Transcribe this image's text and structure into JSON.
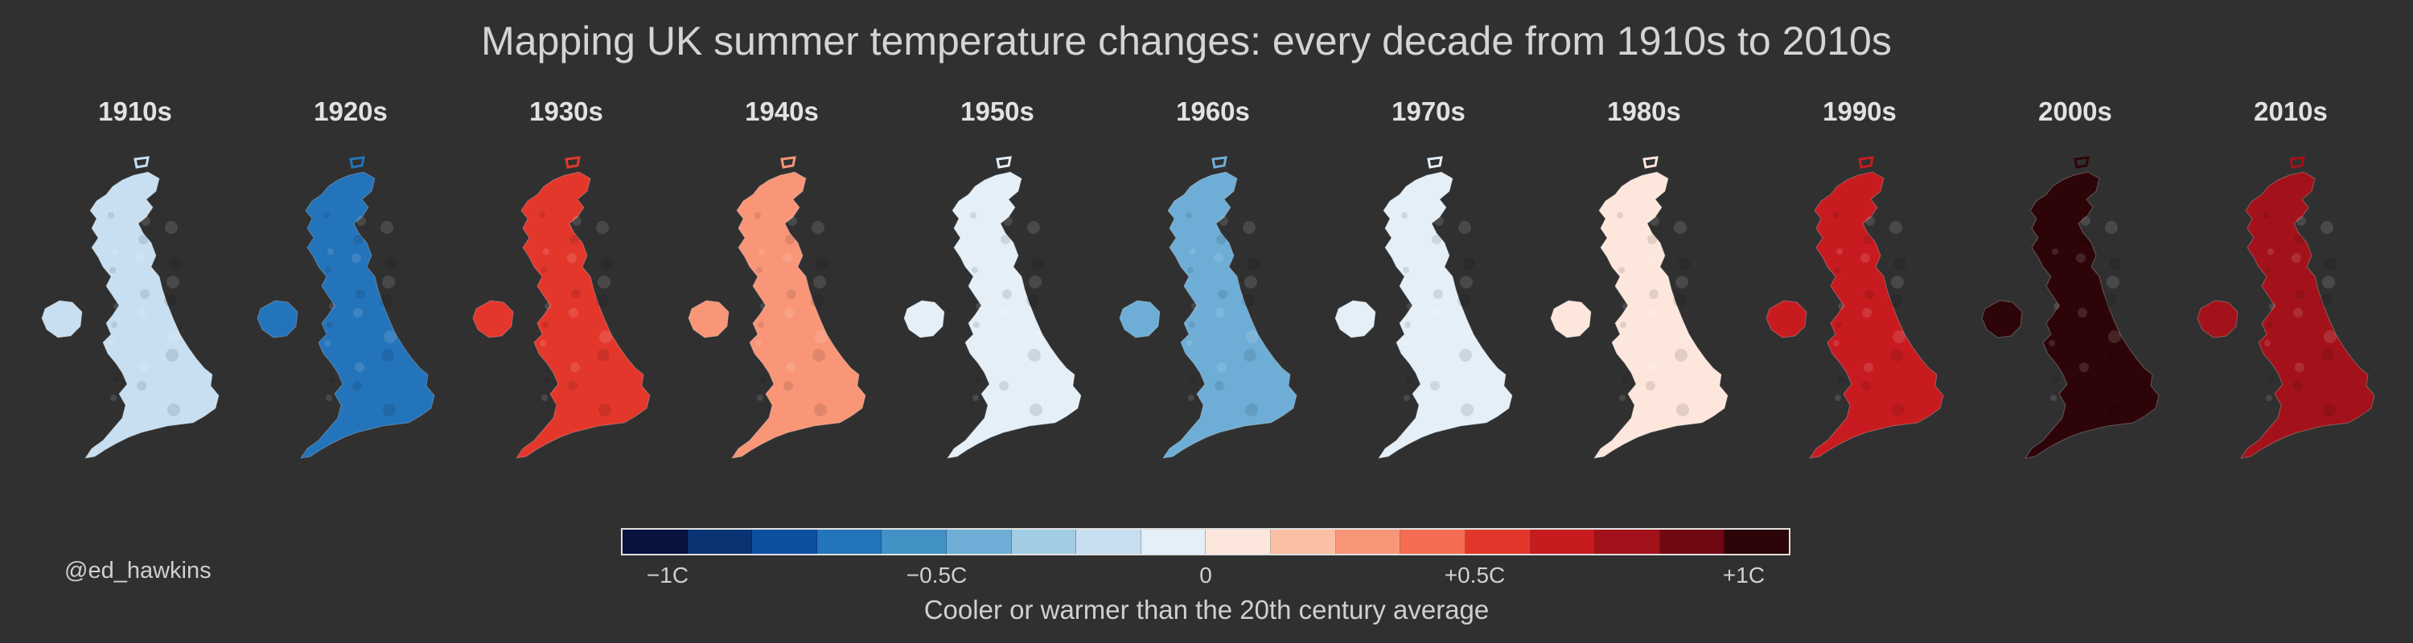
{
  "title": "Mapping UK summer temperature changes: every decade from 1910s to 2010s",
  "credit": "@ed_hawkins",
  "panels": [
    {
      "decade": "1910s",
      "anomaly": -0.2
    },
    {
      "decade": "1920s",
      "anomaly": -0.6
    },
    {
      "decade": "1930s",
      "anomaly": 0.45
    },
    {
      "decade": "1940s",
      "anomaly": 0.3
    },
    {
      "decade": "1950s",
      "anomaly": -0.05
    },
    {
      "decade": "1960s",
      "anomaly": -0.4
    },
    {
      "decade": "1970s",
      "anomaly": -0.1
    },
    {
      "decade": "1980s",
      "anomaly": 0.05
    },
    {
      "decade": "1990s",
      "anomaly": 0.6
    },
    {
      "decade": "2000s",
      "anomaly": 0.95
    },
    {
      "decade": "2010s",
      "anomaly": 0.7
    }
  ],
  "colorbar": {
    "colors": [
      "#08123f",
      "#0a3374",
      "#0c4fa1",
      "#2474bb",
      "#4392c6",
      "#6eaed6",
      "#a2cce4",
      "#c8dff1",
      "#e4eff8",
      "#fde6db",
      "#fbbfa6",
      "#f99678",
      "#f56c52",
      "#e4372c",
      "#c81b20",
      "#a3121a",
      "#6e0812",
      "#2d0508"
    ],
    "ticks": [
      {
        "label": "−1C",
        "value": -1.0
      },
      {
        "label": "−0.5C",
        "value": -0.5
      },
      {
        "label": "0",
        "value": 0
      },
      {
        "label": "+0.5C",
        "value": 0.5
      },
      {
        "label": "+1C",
        "value": 1.0
      }
    ],
    "caption": "Cooler or warmer than the 20th century average"
  }
}
